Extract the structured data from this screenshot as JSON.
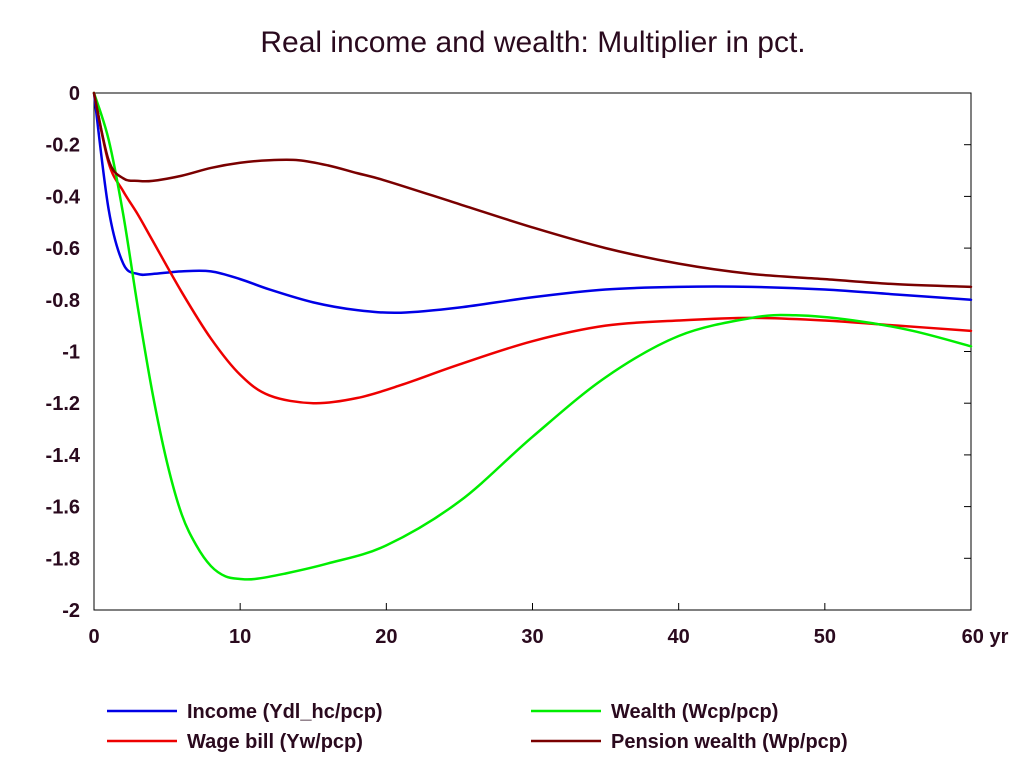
{
  "chart_data": {
    "type": "line",
    "title": "Real income and wealth: Multiplier in pct.",
    "xlabel": "",
    "ylabel": "",
    "xlim": [
      0,
      60
    ],
    "ylim": [
      -2,
      0
    ],
    "x_ticks": [
      0,
      10,
      20,
      30,
      40,
      50,
      60
    ],
    "x_tick_labels": [
      "0",
      "10",
      "20",
      "30",
      "40",
      "50",
      "60 yr"
    ],
    "y_ticks": [
      0,
      -0.2,
      -0.4,
      -0.6,
      -0.8,
      -1,
      -1.2,
      -1.4,
      -1.6,
      -1.8,
      -2
    ],
    "y_tick_labels": [
      "0",
      "-0.2",
      "-0.4",
      "-0.6",
      "-0.8",
      "-1",
      "-1.2",
      "-1.4",
      "-1.6",
      "-1.8",
      "-2"
    ],
    "grid": false,
    "legend_position": "bottom",
    "series": [
      {
        "name": "Income (Ydl_hc/pcp)",
        "color": "#0000e6",
        "x": [
          0,
          1,
          2,
          3,
          4,
          6,
          8,
          10,
          12,
          15,
          18,
          21,
          25,
          30,
          35,
          40,
          45,
          50,
          55,
          60
        ],
        "values": [
          0,
          -0.45,
          -0.66,
          -0.7,
          -0.7,
          -0.69,
          -0.69,
          -0.72,
          -0.76,
          -0.81,
          -0.84,
          -0.85,
          -0.83,
          -0.79,
          -0.76,
          -0.75,
          -0.75,
          -0.76,
          -0.78,
          -0.8
        ]
      },
      {
        "name": "Wage bill (Yw/pcp)",
        "color": "#ee0000",
        "x": [
          0,
          1,
          2,
          3,
          4,
          6,
          8,
          10,
          12,
          15,
          18,
          21,
          25,
          30,
          35,
          40,
          45,
          50,
          55,
          60
        ],
        "values": [
          0,
          -0.27,
          -0.38,
          -0.47,
          -0.57,
          -0.77,
          -0.95,
          -1.09,
          -1.17,
          -1.2,
          -1.18,
          -1.13,
          -1.05,
          -0.96,
          -0.9,
          -0.88,
          -0.87,
          -0.88,
          -0.9,
          -0.92
        ]
      },
      {
        "name": "Wealth (Wcp/pcp)",
        "color": "#00ee00",
        "x": [
          0,
          1,
          2,
          3,
          4,
          5,
          6,
          7,
          8,
          9,
          10,
          11,
          13,
          16,
          20,
          25,
          30,
          35,
          40,
          45,
          48,
          52,
          56,
          60
        ],
        "values": [
          0,
          -0.18,
          -0.47,
          -0.83,
          -1.16,
          -1.43,
          -1.63,
          -1.75,
          -1.83,
          -1.87,
          -1.88,
          -1.88,
          -1.86,
          -1.82,
          -1.75,
          -1.58,
          -1.33,
          -1.1,
          -0.94,
          -0.87,
          -0.86,
          -0.88,
          -0.92,
          -0.98
        ]
      },
      {
        "name": "Pension wealth (Wp/pcp)",
        "color": "#7a0000",
        "x": [
          0,
          1,
          2,
          3,
          4,
          6,
          8,
          10,
          12,
          14,
          16,
          18,
          20,
          25,
          30,
          35,
          40,
          45,
          50,
          55,
          60
        ],
        "values": [
          0,
          -0.26,
          -0.33,
          -0.34,
          -0.34,
          -0.32,
          -0.29,
          -0.27,
          -0.26,
          -0.26,
          -0.28,
          -0.31,
          -0.34,
          -0.43,
          -0.52,
          -0.6,
          -0.66,
          -0.7,
          -0.72,
          -0.74,
          -0.75
        ]
      }
    ]
  }
}
